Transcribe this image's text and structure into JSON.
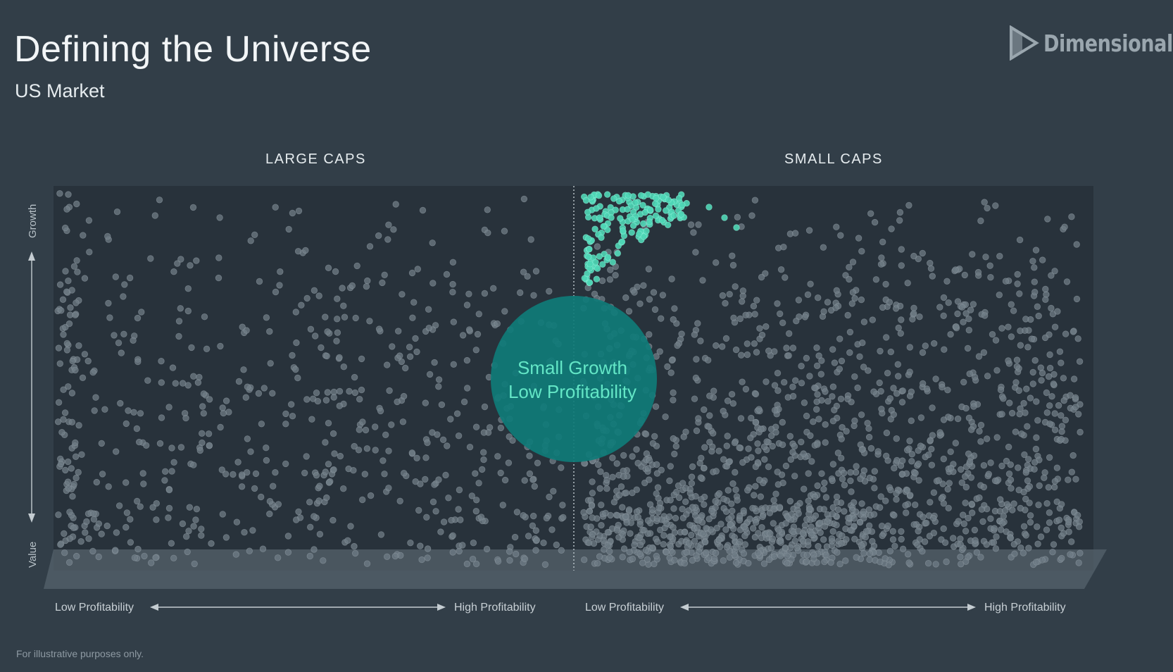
{
  "header": {
    "title": "Defining the Universe",
    "subtitle": "US Market"
  },
  "logo": {
    "text": "Dimensional",
    "icon": "dimensional-logo-icon"
  },
  "sections": {
    "large_caps": "LARGE CAPS",
    "small_caps": "SMALL CAPS"
  },
  "footnote": "For illustrative purposes only.",
  "colors": {
    "background": "#323e48",
    "plot_area": "#28323b",
    "dot_default": "#6f7c85",
    "dot_highlight": "#4fd6b6",
    "bubble": "#0f7b78",
    "bubble_text": "#63e6c6"
  },
  "chart_data": {
    "type": "scatter",
    "y_axis": {
      "top_label": "Growth",
      "bottom_label": "Value"
    },
    "panels": [
      {
        "name": "LARGE CAPS",
        "x_axis": {
          "left_label": "Low Profitability",
          "right_label": "High Profitability"
        }
      },
      {
        "name": "SMALL CAPS",
        "x_axis": {
          "left_label": "Low Profitability",
          "right_label": "High Profitability"
        }
      }
    ],
    "highlight": {
      "panel": "SMALL CAPS",
      "line1": "Small Growth",
      "line2": "Low Profitability"
    },
    "grid": false,
    "points_are_illustrative": true
  }
}
